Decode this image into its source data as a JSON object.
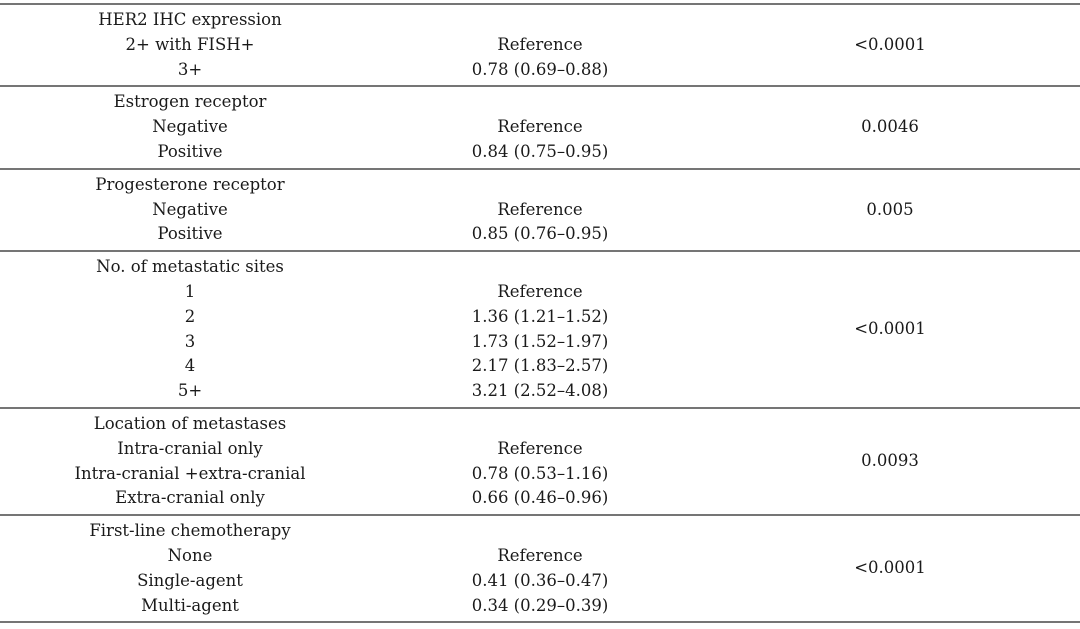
{
  "page": {
    "background": "#ffffff",
    "text_color": "#1a1a1a",
    "rule_color": "#757575"
  },
  "table": {
    "description": "Multivariable survival analysis table: variable, hazard ratio (95% CI), p-value",
    "sections": [
      {
        "variable": "HER2 IHC expression",
        "p_value": "<0.0001",
        "levels": [
          {
            "label": "2+ with FISH+",
            "value": "Reference"
          },
          {
            "label": "3+",
            "value": "0.78 (0.69–0.88)"
          }
        ]
      },
      {
        "variable": "Estrogen receptor",
        "p_value": "0.0046",
        "levels": [
          {
            "label": "Negative",
            "value": "Reference"
          },
          {
            "label": "Positive",
            "value": "0.84 (0.75–0.95)"
          }
        ]
      },
      {
        "variable": "Progesterone receptor",
        "p_value": "0.005",
        "levels": [
          {
            "label": "Negative",
            "value": "Reference"
          },
          {
            "label": "Positive",
            "value": "0.85 (0.76–0.95)"
          }
        ]
      },
      {
        "variable": "No. of metastatic sites",
        "p_value": "<0.0001",
        "levels": [
          {
            "label": "1",
            "value": "Reference"
          },
          {
            "label": "2",
            "value": "1.36 (1.21–1.52)"
          },
          {
            "label": "3",
            "value": "1.73 (1.52–1.97)"
          },
          {
            "label": "4",
            "value": "2.17 (1.83–2.57)"
          },
          {
            "label": "5+",
            "value": "3.21 (2.52–4.08)"
          }
        ]
      },
      {
        "variable": "Location of metastases",
        "p_value": "0.0093",
        "levels": [
          {
            "label": "Intra-cranial only",
            "value": "Reference"
          },
          {
            "label": "Intra-cranial +extra-cranial",
            "value": "0.78 (0.53–1.16)"
          },
          {
            "label": "Extra-cranial only",
            "value": "0.66 (0.46–0.96)"
          }
        ]
      },
      {
        "variable": "First-line chemotherapy",
        "p_value": "<0.0001",
        "levels": [
          {
            "label": "None",
            "value": "Reference"
          },
          {
            "label": "Single-agent",
            "value": "0.41 (0.36–0.47)"
          },
          {
            "label": "Multi-agent",
            "value": "0.34 (0.29–0.39)"
          }
        ]
      }
    ]
  }
}
